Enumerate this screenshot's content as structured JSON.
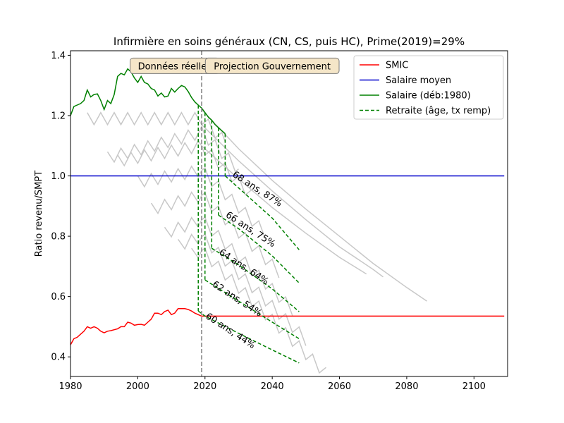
{
  "chart_data": {
    "type": "line",
    "title": "Infirmière en soins généraux (CN, CS, puis HC), Prime(2019)=29%",
    "xlabel": "",
    "ylabel": "Ratio revenu/SMPT",
    "xlim": [
      1980,
      2110
    ],
    "ylim": [
      0.335,
      1.415
    ],
    "xticks": [
      1980,
      2000,
      2020,
      2040,
      2060,
      2080,
      2100
    ],
    "yticks": [
      0.4,
      0.6,
      0.8,
      1.0,
      1.2,
      1.4
    ],
    "grid": false,
    "legend_position": "top-right",
    "projection_start": 2019,
    "colors": {
      "smic": "#ff0000",
      "salaire_moyen": "#0000cc",
      "salaire": "#008000",
      "retraite": "#008000",
      "other_careers": "#c8c8c8",
      "divider": "#808080",
      "box_fill": "#f5e6c8"
    },
    "annotations": [
      {
        "text": "Données réelles",
        "x": 2011,
        "y": 1.365
      },
      {
        "text": "Projection Gouvernement",
        "x": 2040,
        "y": 1.365
      }
    ],
    "legend": [
      {
        "label": "SMIC",
        "color": "#ff0000",
        "dash": false
      },
      {
        "label": "Salaire moyen",
        "color": "#0000cc",
        "dash": false
      },
      {
        "label": "Salaire (déb:1980)",
        "color": "#008000",
        "dash": false
      },
      {
        "label": "Retraite (âge, tx remp)",
        "color": "#008000",
        "dash": true
      }
    ],
    "series": [
      {
        "name": "SMIC",
        "x": [
          1980,
          1981,
          1982,
          1983,
          1984,
          1985,
          1986,
          1987,
          1988,
          1989,
          1990,
          1991,
          1992,
          1993,
          1994,
          1995,
          1996,
          1997,
          1998,
          1999,
          2000,
          2001,
          2002,
          2003,
          2004,
          2005,
          2006,
          2007,
          2008,
          2009,
          2010,
          2011,
          2012,
          2013,
          2014,
          2015,
          2016,
          2017,
          2018,
          2019,
          2020,
          2030,
          2040,
          2060,
          2080,
          2100,
          2109
        ],
        "y": [
          0.44,
          0.46,
          0.465,
          0.475,
          0.485,
          0.5,
          0.495,
          0.5,
          0.495,
          0.485,
          0.48,
          0.485,
          0.487,
          0.49,
          0.493,
          0.5,
          0.5,
          0.515,
          0.512,
          0.505,
          0.507,
          0.508,
          0.505,
          0.515,
          0.525,
          0.545,
          0.545,
          0.54,
          0.55,
          0.555,
          0.54,
          0.545,
          0.56,
          0.56,
          0.56,
          0.557,
          0.552,
          0.545,
          0.54,
          0.535,
          0.535,
          0.535,
          0.535,
          0.535,
          0.535,
          0.535,
          0.535
        ]
      },
      {
        "name": "Salaire moyen",
        "x": [
          1980,
          2109
        ],
        "y": [
          1.0,
          1.0
        ]
      },
      {
        "name": "Salaire (déb:1980)",
        "x": [
          1980,
          1981,
          1982,
          1983,
          1984,
          1985,
          1986,
          1987,
          1988,
          1989,
          1990,
          1991,
          1992,
          1993,
          1994,
          1995,
          1996,
          1997,
          1998,
          1999,
          2000,
          2001,
          2002,
          2003,
          2004,
          2005,
          2006,
          2007,
          2008,
          2009,
          2010,
          2011,
          2012,
          2013,
          2014,
          2015,
          2016,
          2017,
          2018,
          2019,
          2020,
          2021,
          2022,
          2023,
          2024,
          2025,
          2026
        ],
        "y": [
          1.2,
          1.23,
          1.235,
          1.24,
          1.25,
          1.285,
          1.262,
          1.27,
          1.272,
          1.25,
          1.22,
          1.25,
          1.24,
          1.27,
          1.33,
          1.34,
          1.335,
          1.355,
          1.345,
          1.325,
          1.31,
          1.33,
          1.31,
          1.305,
          1.29,
          1.285,
          1.265,
          1.275,
          1.262,
          1.265,
          1.29,
          1.278,
          1.29,
          1.3,
          1.295,
          1.28,
          1.26,
          1.245,
          1.235,
          1.225,
          1.21,
          1.195,
          1.185,
          1.17,
          1.16,
          1.15,
          1.14
        ]
      }
    ],
    "retraite": [
      {
        "label": "60 ans, 44%",
        "start_year": 2018,
        "x": [
          2018,
          2020,
          2030,
          2040,
          2048
        ],
        "y": [
          0.552,
          0.535,
          0.478,
          0.423,
          0.38
        ]
      },
      {
        "label": "62 ans, 54%",
        "start_year": 2020,
        "x": [
          2020,
          2030,
          2040,
          2048
        ],
        "y": [
          0.655,
          0.585,
          0.515,
          0.46
        ]
      },
      {
        "label": "64 ans, 64%",
        "start_year": 2022,
        "x": [
          2022,
          2030,
          2040,
          2048
        ],
        "y": [
          0.76,
          0.705,
          0.625,
          0.55
        ]
      },
      {
        "label": "66 ans, 75%",
        "start_year": 2024,
        "x": [
          2024,
          2030,
          2040,
          2048
        ],
        "y": [
          0.87,
          0.825,
          0.735,
          0.645
        ]
      },
      {
        "label": "68 ans, 87%",
        "start_year": 2026,
        "x": [
          2026,
          2030,
          2040,
          2048
        ],
        "y": [
          1.0,
          0.96,
          0.86,
          0.755
        ]
      }
    ],
    "retraite_labels": [
      {
        "text": "60 ans, 44%",
        "x": 2020,
        "y": 0.53
      },
      {
        "text": "62 ans, 54%",
        "x": 2022,
        "y": 0.636
      },
      {
        "text": "64 ans, 64%",
        "x": 2024,
        "y": 0.742
      },
      {
        "text": "66 ans, 75%",
        "x": 2026,
        "y": 0.866
      },
      {
        "text": "68 ans, 87%",
        "x": 2028,
        "y": 1.0
      }
    ],
    "other_careers": [
      {
        "start": 1985,
        "end": 2026,
        "y0": 1.18,
        "drift": 0.0
      },
      {
        "start": 1991,
        "end": 2030,
        "y0": 1.05,
        "drift": 0.003
      },
      {
        "start": 1994,
        "end": 2034,
        "y0": 1.04,
        "drift": 0.002
      },
      {
        "start": 2000,
        "end": 2038,
        "y0": 0.97,
        "drift": 0.002
      },
      {
        "start": 2004,
        "end": 2042,
        "y0": 0.88,
        "drift": 0.003
      },
      {
        "start": 2008,
        "end": 2046,
        "y0": 0.8,
        "drift": 0.004
      },
      {
        "start": 2012,
        "end": 2050,
        "y0": 0.76,
        "drift": 0.004
      },
      {
        "start": 2016,
        "end": 2056,
        "y0": 0.73,
        "drift": 0.004
      }
    ],
    "envelope": [
      {
        "x": [
          2019,
          2030,
          2040,
          2050,
          2060,
          2070,
          2080,
          2086
        ],
        "y": [
          1.22,
          1.09,
          0.985,
          0.89,
          0.8,
          0.71,
          0.63,
          0.585
        ]
      },
      {
        "x": [
          2019,
          2030,
          2040,
          2050,
          2060,
          2070,
          2073
        ],
        "y": [
          1.17,
          1.05,
          0.95,
          0.855,
          0.765,
          0.69,
          0.665
        ]
      },
      {
        "x": [
          2019,
          2030,
          2040,
          2050,
          2060,
          2068
        ],
        "y": [
          1.1,
          0.99,
          0.895,
          0.81,
          0.73,
          0.675
        ]
      }
    ]
  }
}
